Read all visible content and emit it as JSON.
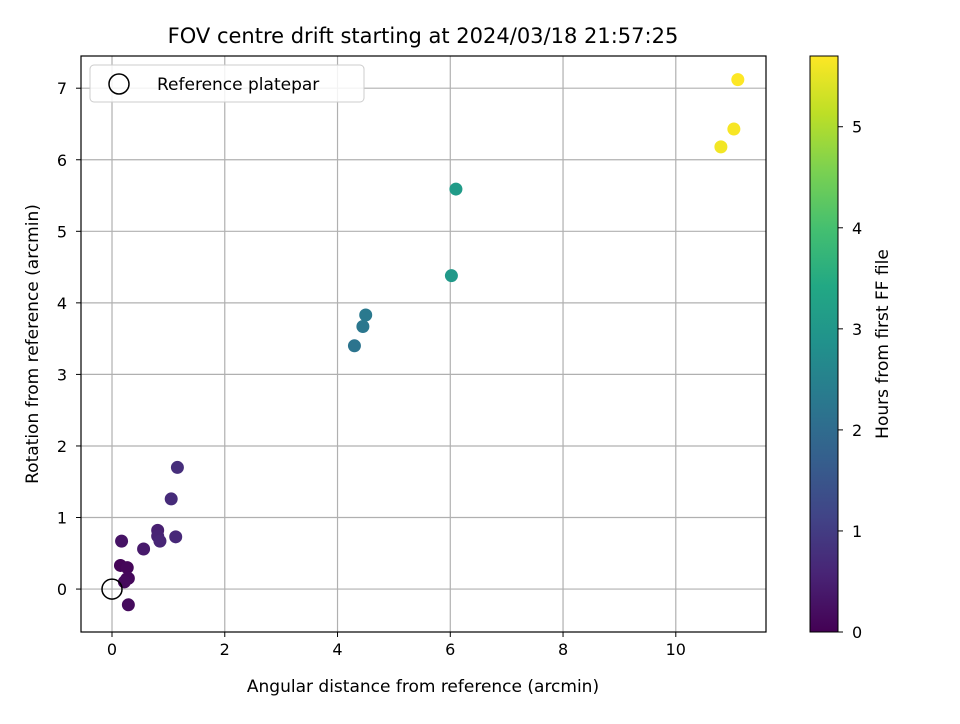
{
  "chart_data": {
    "type": "scatter",
    "title": "FOV centre drift starting at 2024/03/18 21:57:25",
    "xlabel": "Angular distance from reference (arcmin)",
    "ylabel": "Rotation from reference (arcmin)",
    "xlim": [
      -0.55,
      11.6
    ],
    "ylim": [
      -0.6,
      7.45
    ],
    "xticks": [
      0,
      2,
      4,
      6,
      8,
      10
    ],
    "yticks": [
      0,
      1,
      2,
      3,
      4,
      5,
      6,
      7
    ],
    "grid": true,
    "legend": {
      "placement": "top-left",
      "entries": [
        "Reference platepar"
      ]
    },
    "reference_point": {
      "x": 0,
      "y": 0
    },
    "colorbar": {
      "label": "Hours from first FF file",
      "colormap": "viridis",
      "range": [
        0,
        5.7
      ],
      "ticks": [
        0,
        1,
        2,
        3,
        4,
        5
      ]
    },
    "points": [
      {
        "x": 0.15,
        "y": 0.33,
        "c": 0.05
      },
      {
        "x": 0.27,
        "y": 0.3,
        "c": 0.08
      },
      {
        "x": 0.26,
        "y": 0.14,
        "c": 0.1
      },
      {
        "x": 0.29,
        "y": 0.15,
        "c": 0.12
      },
      {
        "x": 0.22,
        "y": 0.1,
        "c": 0.14
      },
      {
        "x": 0.29,
        "y": -0.22,
        "c": 0.16
      },
      {
        "x": 0.17,
        "y": 0.67,
        "c": 0.3
      },
      {
        "x": 0.56,
        "y": 0.56,
        "c": 0.4
      },
      {
        "x": 0.81,
        "y": 0.82,
        "c": 0.5
      },
      {
        "x": 0.81,
        "y": 0.74,
        "c": 0.55
      },
      {
        "x": 0.85,
        "y": 0.67,
        "c": 0.6
      },
      {
        "x": 1.13,
        "y": 0.73,
        "c": 0.65
      },
      {
        "x": 1.05,
        "y": 1.26,
        "c": 0.7
      },
      {
        "x": 1.16,
        "y": 1.7,
        "c": 0.75
      },
      {
        "x": 4.3,
        "y": 3.4,
        "c": 2.2
      },
      {
        "x": 4.45,
        "y": 3.67,
        "c": 2.25
      },
      {
        "x": 4.5,
        "y": 3.83,
        "c": 2.3
      },
      {
        "x": 6.02,
        "y": 4.38,
        "c": 3.05
      },
      {
        "x": 6.1,
        "y": 5.59,
        "c": 3.1
      },
      {
        "x": 10.8,
        "y": 6.18,
        "c": 5.6
      },
      {
        "x": 11.03,
        "y": 6.43,
        "c": 5.65
      },
      {
        "x": 11.1,
        "y": 7.12,
        "c": 5.7
      }
    ]
  }
}
